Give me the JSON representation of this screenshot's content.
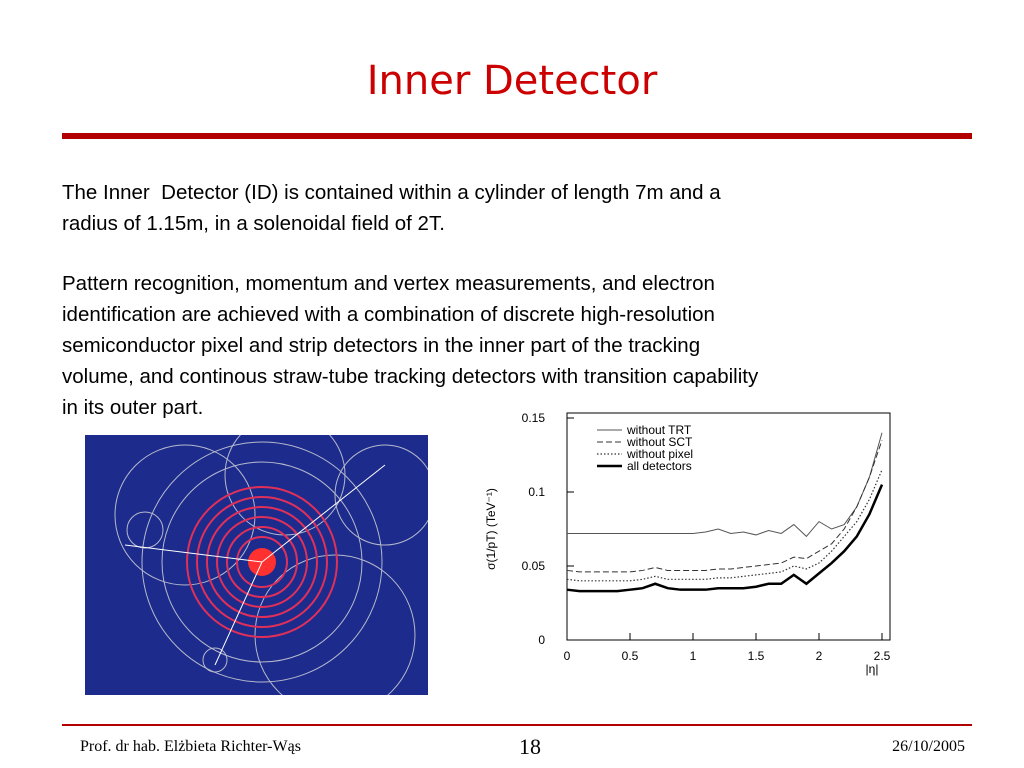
{
  "slide": {
    "title": "Inner Detector",
    "paragraphs": [
      {
        "lines": [
          "The Inner  Detector (ID) is contained within a cylinder of length 7m and a",
          "radius of 1.15m, in a solenoidal field of 2T."
        ]
      },
      {
        "lines": [
          "Pattern recognition, momentum and vertex measurements, and electron",
          "identification are achieved with a combination of discrete high-resolution",
          "semiconductor pixel and strip detectors in the inner part of the tracking",
          "volume, and continous straw-tube tracking detectors with transition capability",
          "in its outer part."
        ]
      }
    ],
    "footer": {
      "author": "Prof. dr hab. Elżbieta Richter-Wąs",
      "page": "18",
      "date": "26/10/2005"
    }
  },
  "chart_data": {
    "type": "line",
    "y_label": "σ(1/pT) (TeV⁻¹)",
    "x_label": "|η|",
    "x": [
      0,
      0.1,
      0.2,
      0.3,
      0.4,
      0.5,
      0.6,
      0.7,
      0.8,
      0.9,
      1,
      1.1,
      1.2,
      1.3,
      1.4,
      1.5,
      1.6,
      1.7,
      1.8,
      1.9,
      2,
      2.1,
      2.2,
      2.3,
      2.4,
      2.5
    ],
    "xlim": [
      0,
      2.5
    ],
    "xticks": [
      0,
      0.5,
      1,
      1.5,
      2,
      2.5
    ],
    "ylim": [
      0,
      0.15
    ],
    "yticks": [
      0,
      0.05,
      0.1,
      0.15
    ],
    "series": [
      {
        "name": "without TRT",
        "color": "#555555",
        "dash": "solid",
        "width": 1,
        "values": [
          0.072,
          0.072,
          0.072,
          0.072,
          0.072,
          0.072,
          0.072,
          0.072,
          0.072,
          0.072,
          0.072,
          0.073,
          0.075,
          0.072,
          0.073,
          0.071,
          0.074,
          0.072,
          0.078,
          0.07,
          0.08,
          0.075,
          0.078,
          0.09,
          0.11,
          0.14
        ]
      },
      {
        "name": "without SCT",
        "color": "#333333",
        "dash": "dashed",
        "width": 1,
        "values": [
          0.047,
          0.046,
          0.046,
          0.046,
          0.046,
          0.046,
          0.047,
          0.049,
          0.047,
          0.047,
          0.047,
          0.047,
          0.048,
          0.048,
          0.049,
          0.05,
          0.051,
          0.052,
          0.056,
          0.055,
          0.06,
          0.065,
          0.075,
          0.09,
          0.11,
          0.135
        ]
      },
      {
        "name": "without pixel",
        "color": "#333333",
        "dash": "dotted",
        "width": 1.2,
        "values": [
          0.041,
          0.04,
          0.04,
          0.04,
          0.04,
          0.04,
          0.041,
          0.043,
          0.041,
          0.041,
          0.041,
          0.041,
          0.042,
          0.042,
          0.043,
          0.044,
          0.045,
          0.046,
          0.05,
          0.048,
          0.052,
          0.06,
          0.07,
          0.08,
          0.095,
          0.115
        ]
      },
      {
        "name": "all detectors",
        "color": "#000000",
        "dash": "solid",
        "width": 2.5,
        "values": [
          0.034,
          0.033,
          0.033,
          0.033,
          0.033,
          0.034,
          0.035,
          0.038,
          0.035,
          0.034,
          0.034,
          0.034,
          0.035,
          0.035,
          0.035,
          0.036,
          0.038,
          0.038,
          0.044,
          0.038,
          0.045,
          0.052,
          0.06,
          0.07,
          0.085,
          0.105
        ]
      }
    ]
  }
}
